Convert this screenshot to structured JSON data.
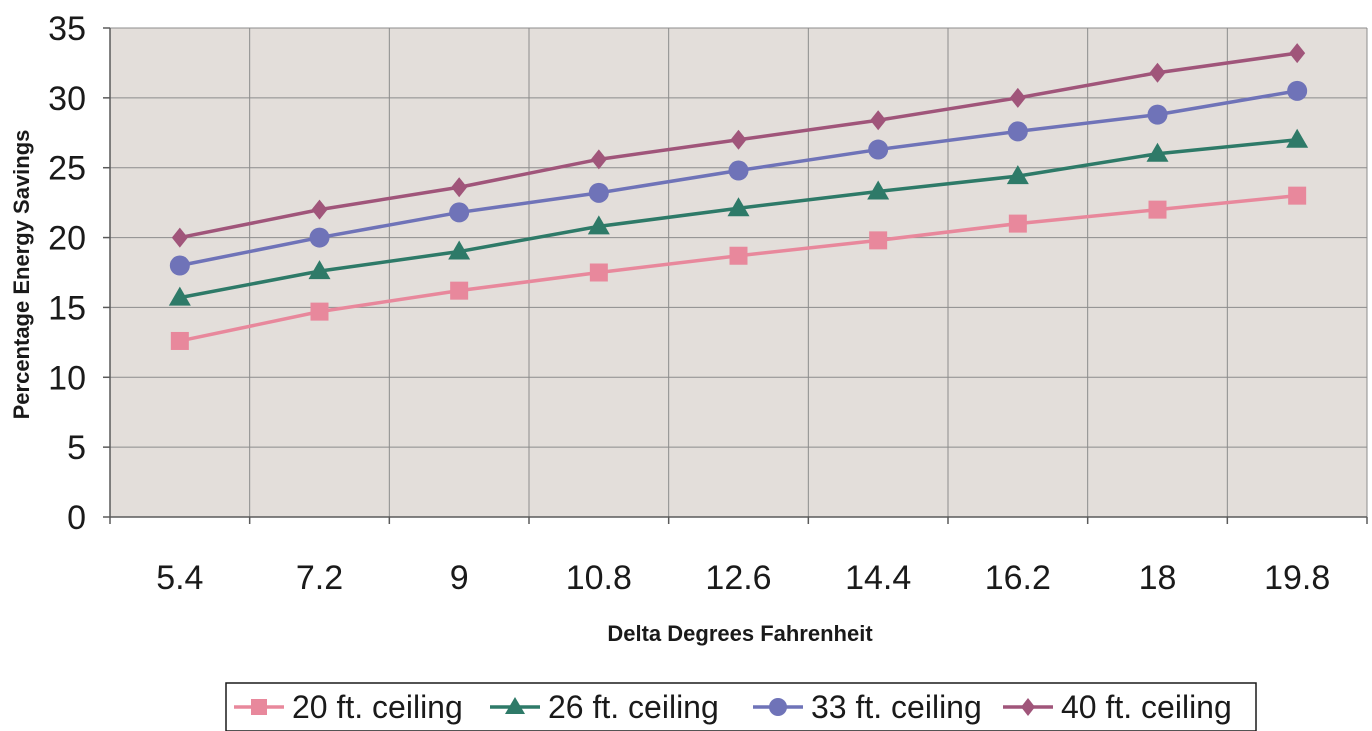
{
  "chart_data": {
    "type": "line",
    "title": "",
    "xlabel": "Delta Degrees Fahrenheit",
    "ylabel": "Percentage Energy Savings",
    "categories": [
      "5.4",
      "7.2",
      "9",
      "10.8",
      "12.6",
      "14.4",
      "16.2",
      "18",
      "19.8"
    ],
    "ylim": [
      0,
      35
    ],
    "yticks": [
      "0",
      "5",
      "10",
      "15",
      "20",
      "25",
      "30",
      "35"
    ],
    "grid": true,
    "plot_background": "#e3deda",
    "legend_position": "bottom",
    "series": [
      {
        "name": "20 ft. ceiling",
        "color": "#e8889c",
        "marker": "square",
        "values": [
          12.6,
          14.7,
          16.2,
          17.5,
          18.7,
          19.8,
          21.0,
          22.0,
          23.0
        ]
      },
      {
        "name": "26 ft. ceiling",
        "color": "#2e7a68",
        "marker": "triangle",
        "values": [
          15.7,
          17.6,
          19.0,
          20.8,
          22.1,
          23.3,
          24.4,
          26.0,
          27.0
        ]
      },
      {
        "name": "33 ft. ceiling",
        "color": "#6f73b8",
        "marker": "circle",
        "values": [
          18.0,
          20.0,
          21.8,
          23.2,
          24.8,
          26.3,
          27.6,
          28.8,
          30.5
        ]
      },
      {
        "name": "40 ft. ceiling",
        "color": "#a0557a",
        "marker": "diamond",
        "values": [
          20.0,
          22.0,
          23.6,
          25.6,
          27.0,
          28.4,
          30.0,
          31.8,
          33.2
        ]
      }
    ]
  }
}
